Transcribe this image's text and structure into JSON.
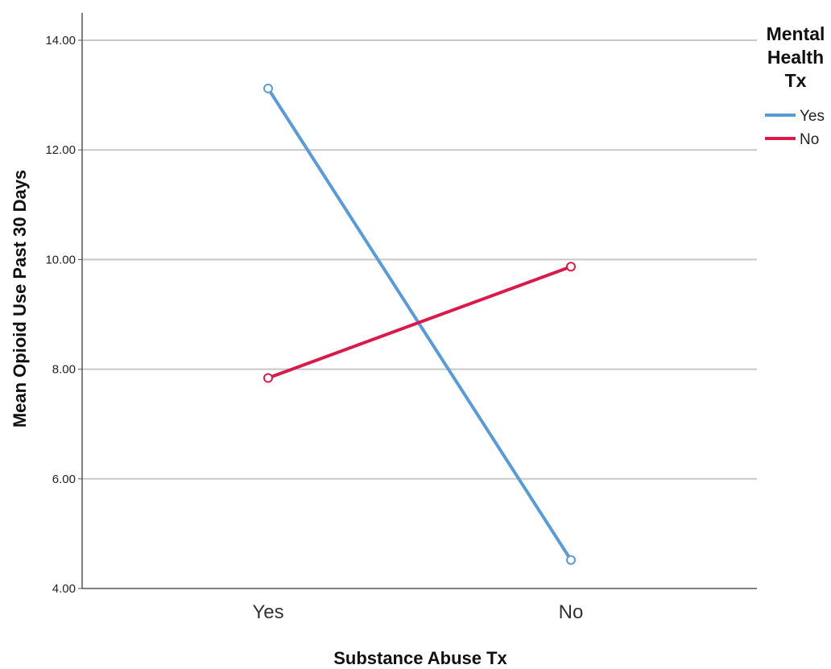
{
  "chart_data": {
    "type": "line",
    "xlabel": "Substance Abuse Tx",
    "ylabel": "Mean Opioid Use Past 30 Days",
    "categories": [
      "Yes",
      "No"
    ],
    "ylim": [
      4,
      14
    ],
    "yticks": [
      "4.00",
      "6.00",
      "8.00",
      "10.00",
      "12.00",
      "14.00"
    ],
    "grid": true,
    "legend": {
      "title": "Mental Health Tx",
      "title_lines": [
        "Mental",
        "Health",
        "Tx"
      ],
      "placement": "right"
    },
    "series": [
      {
        "name": "Yes",
        "color": "#5b9bd5",
        "values": [
          13.12,
          4.52
        ]
      },
      {
        "name": "No",
        "color": "#d81b4a",
        "values": [
          7.84,
          9.87
        ]
      }
    ]
  }
}
